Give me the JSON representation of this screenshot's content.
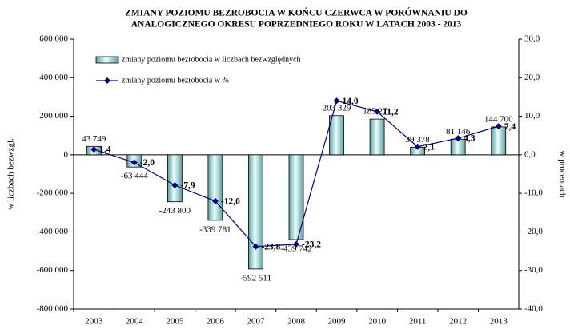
{
  "chart_data": {
    "type": "bar",
    "title": [
      "ZMIANY POZIOMU BEZROBOCIA W KOŃCU CZERWCA W PORÓWNANIU DO",
      "ANALOGICZNEGO OKRESU POPRZEDNIEGO ROKU W LATACH 2003 - 2013"
    ],
    "ylabel": "w liczbach bezwzgl.",
    "y2label": "w procentach",
    "categories": [
      "2003",
      "2004",
      "2005",
      "2006",
      "2007",
      "2008",
      "2009",
      "2010",
      "2011",
      "2012",
      "2013"
    ],
    "series": [
      {
        "name": "zmiany poziomu bezrobocia w liczbach bezwzględnych",
        "type": "bar",
        "color": "#b7ecec",
        "values": [
          43749,
          -63444,
          -243800,
          -339781,
          -592511,
          -439742,
          203329,
          185271,
          39378,
          81146,
          144700
        ],
        "value_labels": [
          "43 749",
          "-63 444",
          "-243 800",
          "-339 781",
          "-592 511",
          "-439 742",
          "203 329",
          "185 271",
          "39 378",
          "81 146",
          "144 700"
        ]
      },
      {
        "name": "zmiany poziomu bezrobocia w %",
        "type": "line",
        "axis": "y2",
        "color": "#000080",
        "values": [
          1.4,
          -2.0,
          -7.9,
          -12.0,
          -23.8,
          -23.2,
          14.0,
          11.2,
          2.1,
          4.3,
          7.4
        ],
        "value_labels": [
          "1,4",
          "-2,0",
          "-7,9",
          "-12,0",
          "-23,8",
          "-23,2",
          "14,0",
          "11,2",
          "2,1",
          "4,3",
          "7,4"
        ]
      }
    ],
    "ylim": [
      -800000,
      600000
    ],
    "yticks": [
      {
        "value": -800000,
        "label": "-800 000"
      },
      {
        "value": -600000,
        "label": "-600 000"
      },
      {
        "value": -400000,
        "label": "-400 000"
      },
      {
        "value": -200000,
        "label": "-200 000"
      },
      0,
      {
        "value": 200000,
        "label": "200 000"
      },
      {
        "value": 400000,
        "label": "400 000"
      },
      {
        "value": 600000,
        "label": "600 000"
      }
    ],
    "y2lim": [
      -40,
      30
    ],
    "y2ticks": [
      {
        "value": -40,
        "label": "-40,0"
      },
      {
        "value": -30,
        "label": "-30,0"
      },
      {
        "value": -20,
        "label": "-20,0"
      },
      {
        "value": -10,
        "label": "-10,0"
      },
      {
        "value": 0,
        "label": "0,0"
      },
      {
        "value": 10,
        "label": "10,0"
      },
      {
        "value": 20,
        "label": "20,0"
      },
      {
        "value": 30,
        "label": "30,0"
      }
    ]
  }
}
